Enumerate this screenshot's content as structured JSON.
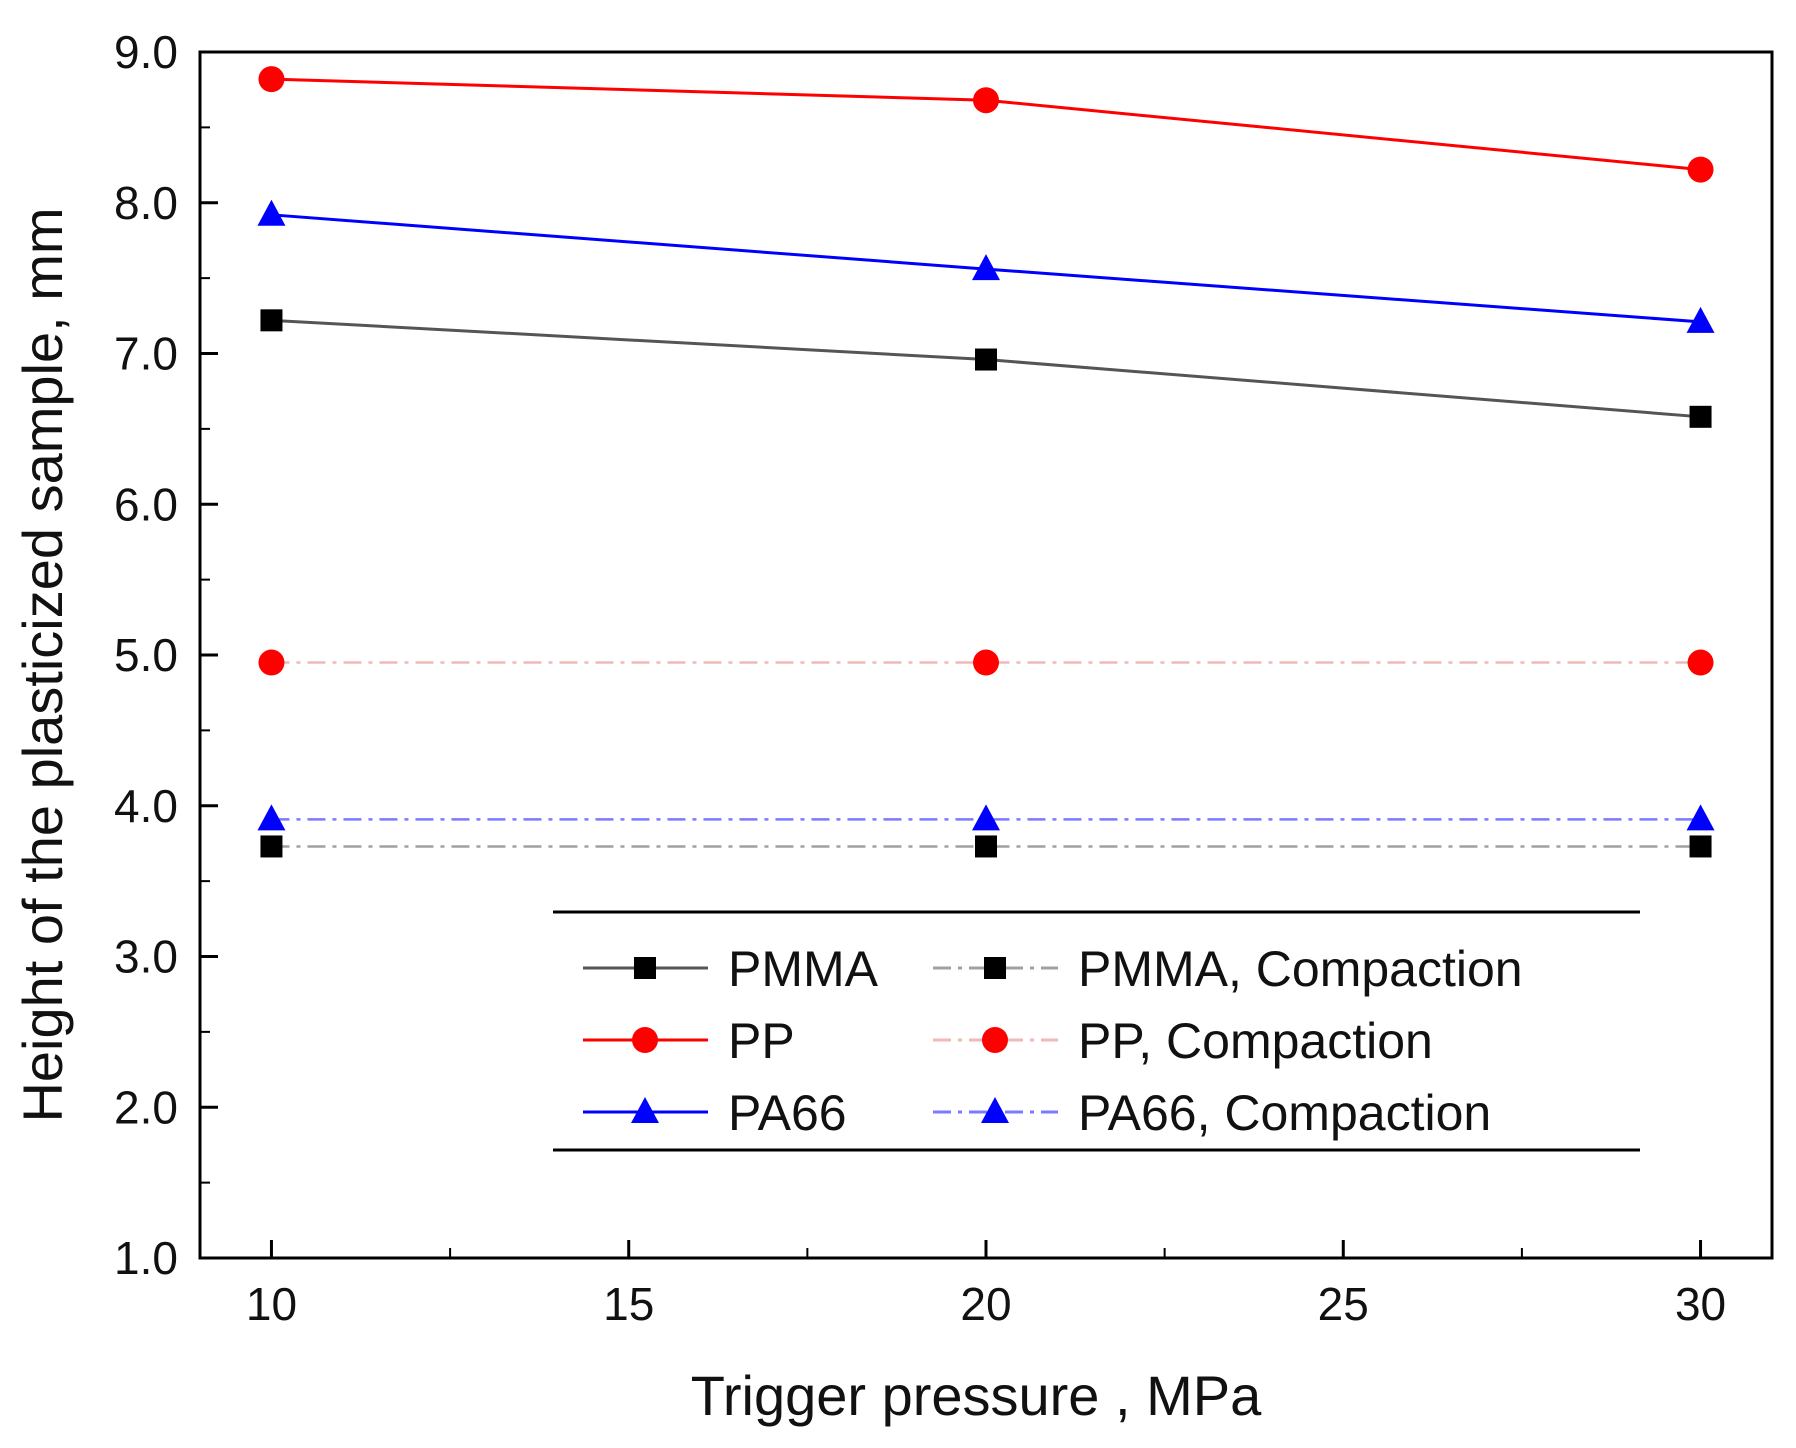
{
  "chart_data": {
    "type": "line",
    "title": "",
    "xlabel": "Trigger pressure , MPa",
    "ylabel": "Height of the plasticized sample, mm",
    "x": [
      10,
      20,
      30
    ],
    "xlim": [
      9,
      31
    ],
    "ylim": [
      1.0,
      9.0
    ],
    "xticks": [
      10,
      15,
      20,
      25,
      30
    ],
    "xtick_labels": [
      "10",
      "15",
      "20",
      "25",
      "30"
    ],
    "yticks": [
      1.0,
      2.0,
      3.0,
      4.0,
      5.0,
      6.0,
      7.0,
      8.0,
      9.0
    ],
    "ytick_labels": [
      "1.0",
      "2.0",
      "3.0",
      "4.0",
      "5.0",
      "6.0",
      "7.0",
      "8.0",
      "9.0"
    ],
    "grid": false,
    "legend_position": "bottom-right",
    "series": [
      {
        "name": "PMMA",
        "values": [
          7.22,
          6.96,
          6.58
        ],
        "color": "#000000",
        "line_color": "#555555",
        "marker": "square",
        "dash": "solid"
      },
      {
        "name": "PP",
        "values": [
          8.82,
          8.68,
          8.22
        ],
        "color": "#ff0000",
        "line_color": "#ff0000",
        "marker": "circle",
        "dash": "solid"
      },
      {
        "name": "PA66",
        "values": [
          7.92,
          7.56,
          7.21
        ],
        "color": "#0000ff",
        "line_color": "#0000ff",
        "marker": "triangle",
        "dash": "solid"
      },
      {
        "name": "PMMA, Compaction",
        "values": [
          3.73,
          3.73,
          3.73
        ],
        "color": "#000000",
        "line_color": "#a0a0a0",
        "marker": "square",
        "dash": "dashdot"
      },
      {
        "name": "PP, Compaction",
        "values": [
          4.95,
          4.95,
          4.95
        ],
        "color": "#ff0000",
        "line_color": "#f2b8b8",
        "marker": "circle",
        "dash": "dashdot"
      },
      {
        "name": "PA66, Compaction",
        "values": [
          3.91,
          3.91,
          3.91
        ],
        "color": "#0000ff",
        "line_color": "#7b7bff",
        "marker": "triangle",
        "dash": "dashdot"
      }
    ]
  }
}
